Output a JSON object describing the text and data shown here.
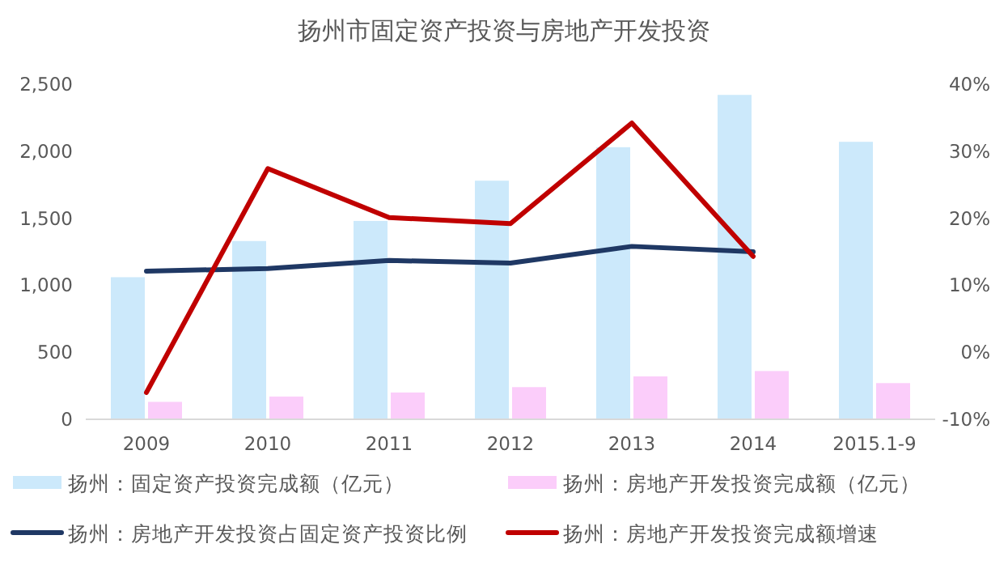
{
  "chart_data": {
    "type": "bar",
    "title": "扬州市固定资产投资与房地产开发投资",
    "categories": [
      "2009",
      "2010",
      "2011",
      "2012",
      "2013",
      "2014",
      "2015.1-9"
    ],
    "series": [
      {
        "name": "扬州：固定资产投资完成额（亿元）",
        "color": "#cce9fb",
        "values": [
          1060,
          1330,
          1480,
          1780,
          2030,
          2420,
          2070
        ]
      },
      {
        "name": "扬州：房地产开发投资完成额（亿元）",
        "color": "#fbcdfa",
        "values": [
          130,
          170,
          200,
          240,
          320,
          360,
          270
        ]
      },
      {
        "name": "扬州：房地产开发投资占固定资产投资比例",
        "type": "line",
        "axis": "y2",
        "color": "#1f3864",
        "values": [
          12.1,
          12.5,
          13.7,
          13.3,
          15.8,
          15.0,
          null
        ]
      },
      {
        "name": "扬州：房地产开发投资完成额增速",
        "type": "line",
        "axis": "y2",
        "color": "#c00000",
        "values": [
          -6,
          27.4,
          20.1,
          19.2,
          34.2,
          14.3,
          null
        ]
      }
    ],
    "ylim": [
      0,
      2500
    ],
    "yticks": [
      0,
      {
        "value": 500,
        "label": "500"
      },
      {
        "value": 1000,
        "label": "1,000"
      },
      {
        "value": 1500,
        "label": "1,500"
      },
      {
        "value": 2000,
        "label": "2,000"
      },
      {
        "value": 2500,
        "label": "2,500"
      }
    ],
    "y2lim": [
      -10,
      40
    ],
    "y2ticks": [
      {
        "value": -10,
        "label": "-10%"
      },
      {
        "value": 0,
        "label": "0%"
      },
      {
        "value": 10,
        "label": "10%"
      },
      {
        "value": 20,
        "label": "20%"
      },
      {
        "value": 30,
        "label": "30%"
      },
      {
        "value": 40,
        "label": "40%"
      }
    ],
    "legend": "bottom",
    "marker": "none",
    "line_style": "solid",
    "grid": false
  }
}
